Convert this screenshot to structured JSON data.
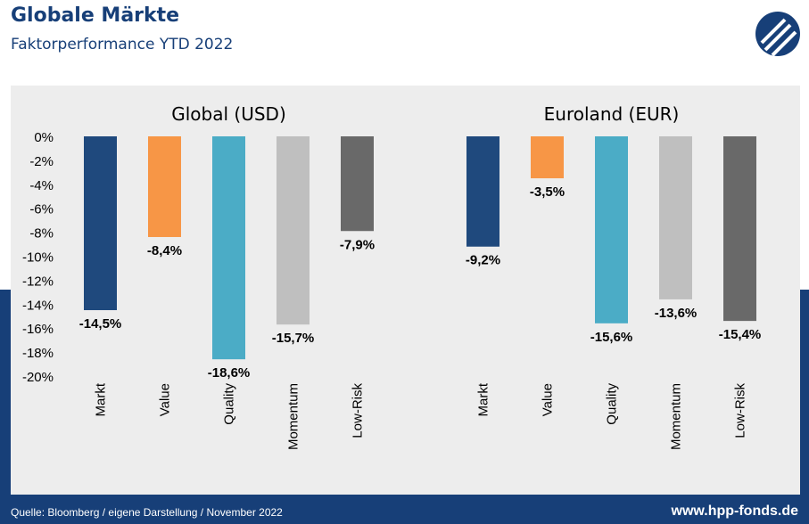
{
  "header": {
    "title": "Globale Märkte",
    "subtitle": "Faktorperformance YTD 2022"
  },
  "logo": {
    "icon": "hpp-logo-icon",
    "color": "#173f78"
  },
  "chart_data": {
    "type": "bar",
    "y_axis": {
      "ylim": [
        -20,
        0
      ],
      "ticks": [
        "0%",
        "-2%",
        "-4%",
        "-6%",
        "-8%",
        "-10%",
        "-12%",
        "-14%",
        "-16%",
        "-18%",
        "-20%"
      ],
      "grid": false
    },
    "categories": [
      "Markt",
      "Value",
      "Quality",
      "Momentum",
      "Low-Risk"
    ],
    "colors": [
      "#1f497d",
      "#f79646",
      "#4bacc6",
      "#bfbfbf",
      "#696969"
    ],
    "panels": [
      {
        "title": "Global (USD)",
        "values": [
          -14.5,
          -8.4,
          -18.6,
          -15.7,
          -7.9
        ],
        "labels": [
          "-14,5%",
          "-8,4%",
          "-18,6%",
          "-15,7%",
          "-7,9%"
        ]
      },
      {
        "title": "Euroland (EUR)",
        "values": [
          -9.2,
          -3.5,
          -15.6,
          -13.6,
          -15.4
        ],
        "labels": [
          "-9,2%",
          "-3,5%",
          "-15,6%",
          "-13,6%",
          "-15,4%"
        ]
      }
    ]
  },
  "footer": {
    "source": "Quelle: Bloomberg / eigene Darstellung / November 2022",
    "url": "www.hpp-fonds.de"
  }
}
